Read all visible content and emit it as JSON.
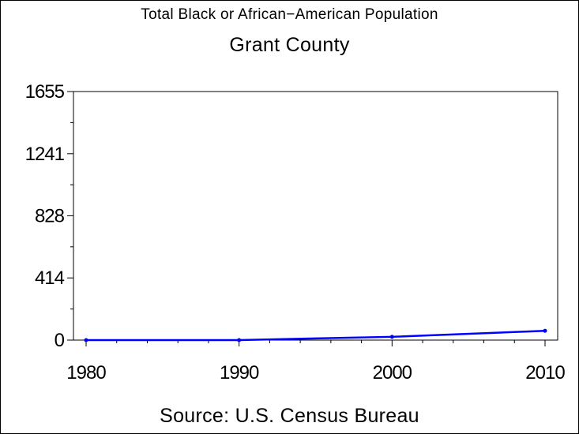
{
  "chart_data": {
    "type": "line",
    "title": "Total Black or African−American Population",
    "subtitle": "Grant County",
    "source": "Source: U.S. Census Bureau",
    "x": [
      1980,
      1990,
      2000,
      2010
    ],
    "series": [
      {
        "values": [
          0,
          0,
          22,
          62
        ]
      }
    ],
    "xlim": [
      1980,
      2010
    ],
    "ylim": [
      0,
      1655
    ],
    "x_ticks": [
      "1980",
      "1990",
      "2000",
      "2010"
    ],
    "y_ticks": [
      "0",
      "414",
      "828",
      "1241",
      "1655"
    ],
    "grid": false,
    "line_color": "#0000ff",
    "axis_color": "#000000"
  }
}
